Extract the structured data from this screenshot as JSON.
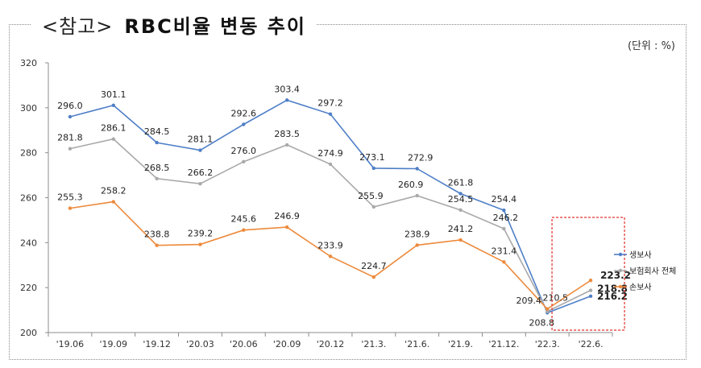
{
  "title": {
    "tag": "<참고>",
    "main": "RBC비율 변동 추이"
  },
  "unit_label": "(단위 : %)",
  "chart_data": {
    "type": "line",
    "categories": [
      "'19.06",
      "'19.09",
      "'19.12",
      "'20.03",
      "'20.06",
      "'20.09",
      "'20.12",
      "'21.3.",
      "'21.6.",
      "'21.9.",
      "'21.12.",
      "'22.3.",
      "'22.6."
    ],
    "ylim": [
      200,
      320
    ],
    "yticks": [
      200,
      220,
      240,
      260,
      280,
      300,
      320
    ],
    "grid": false,
    "legend_position": "right",
    "series": [
      {
        "name": "생보사",
        "color": "#4f7fc7",
        "values": [
          296.0,
          301.1,
          284.5,
          281.1,
          292.6,
          303.4,
          297.2,
          273.1,
          272.9,
          261.8,
          254.4,
          208.8,
          216.2
        ],
        "labels": [
          "296.0",
          "301.1",
          "284.5",
          "281.1",
          "292.6",
          "303.4",
          "297.2",
          "273.1",
          "272.9",
          "261.8",
          "254.4",
          "208.8",
          "216.2"
        ]
      },
      {
        "name": "보험회사 전체",
        "color": "#a9a9a9",
        "values": [
          281.8,
          286.1,
          268.5,
          266.2,
          276.0,
          283.5,
          274.9,
          255.9,
          260.9,
          254.5,
          246.2,
          209.4,
          218.8
        ],
        "labels": [
          "281.8",
          "286.1",
          "268.5",
          "266.2",
          "276.0",
          "283.5",
          "274.9",
          "255.9",
          "260.9",
          "254.5",
          "246.2",
          "209.4",
          "218.8"
        ]
      },
      {
        "name": "손보사",
        "color": "#ed8a3c",
        "values": [
          255.3,
          258.2,
          238.8,
          239.2,
          245.6,
          246.9,
          233.9,
          224.7,
          238.9,
          241.2,
          231.4,
          210.5,
          223.2
        ],
        "labels": [
          "255.3",
          "258.2",
          "238.8",
          "239.2",
          "245.6",
          "246.9",
          "233.9",
          "224.7",
          "238.9",
          "241.2",
          "231.4",
          "210.5",
          "223.2"
        ]
      }
    ],
    "highlight": {
      "category": "'22.6.",
      "style": "red-dashed-box"
    }
  }
}
